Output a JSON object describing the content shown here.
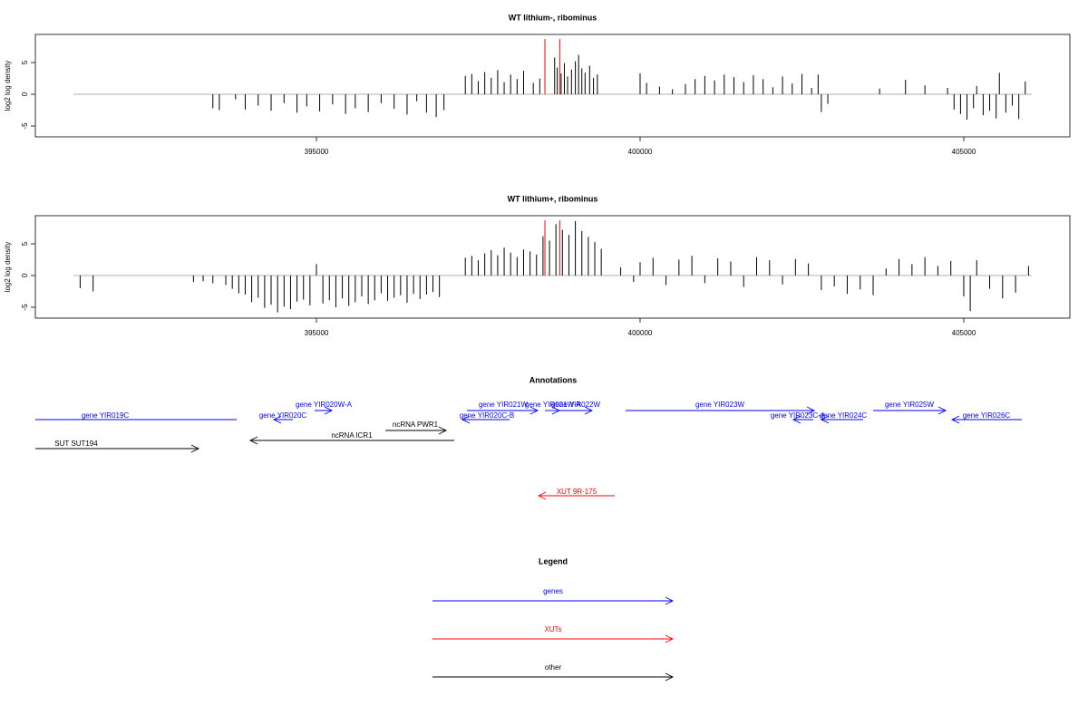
{
  "chart_data": [
    {
      "type": "bar",
      "title": "WT lithium-, ribominus",
      "ylabel": "log2 log density",
      "xlim": [
        390658,
        406639
      ],
      "ylim": [
        -6.71,
        9.43
      ],
      "xticks": [
        395000,
        400000,
        405000
      ],
      "yticks": [
        -5,
        0,
        5
      ],
      "series": [
        {
          "color": "#000000",
          "x": [
            393400,
            393500,
            393750,
            393900,
            394100,
            394300,
            394500,
            394700,
            394850,
            395050,
            395250,
            395450,
            395600,
            395800,
            396000,
            396200,
            396400,
            396550,
            396700,
            396850,
            396970,
            397300,
            397400,
            397500,
            397600,
            397700,
            397800,
            397900,
            398000,
            398100,
            398200,
            398350,
            398450,
            398680,
            398720,
            398780,
            398830,
            398880,
            398940,
            399000,
            399050,
            399100,
            399150,
            399220,
            399280,
            399340,
            400000,
            400100,
            400300,
            400500,
            400700,
            400850,
            401000,
            401150,
            401300,
            401450,
            401600,
            401750,
            401900,
            402050,
            402200,
            402350,
            402500,
            402650,
            402750,
            402800,
            402900,
            403700,
            404100,
            404400,
            404750,
            404850,
            404950,
            405050,
            405150,
            405200,
            405300,
            405400,
            405500,
            405550,
            405650,
            405750,
            405850,
            405950
          ],
          "values": [
            -2.2,
            -2.5,
            -0.8,
            -2.4,
            -1.8,
            -2.6,
            -1.4,
            -2.9,
            -1.9,
            -2.7,
            -1.6,
            -3.1,
            -2.2,
            -2.8,
            -1.4,
            -2.3,
            -3.2,
            -1.1,
            -2.9,
            -3.6,
            -2.5,
            2.9,
            3.2,
            2.1,
            3.5,
            2.6,
            3.8,
            1.9,
            3.1,
            2.4,
            3.7,
            1.8,
            2.5,
            5.8,
            4.2,
            3.3,
            4.9,
            2.8,
            3.9,
            5.2,
            6.2,
            4.1,
            3.4,
            4.5,
            2.6,
            3.1,
            3.3,
            1.8,
            1.2,
            0.8,
            1.6,
            2.4,
            2.9,
            2.2,
            3.1,
            2.7,
            1.9,
            3.0,
            2.4,
            1.1,
            2.8,
            1.7,
            3.2,
            1.0,
            3.1,
            -2.8,
            -1.5,
            0.9,
            2.3,
            1.4,
            1.0,
            -2.4,
            -3.1,
            -4.0,
            -2.2,
            1.3,
            -3.3,
            -2.6,
            -3.8,
            3.4,
            -2.9,
            -1.8,
            -3.9,
            2.0
          ]
        },
        {
          "color": "#e8322d",
          "x": [
            398530,
            398760
          ],
          "values": [
            8.7,
            8.7
          ]
        }
      ]
    },
    {
      "type": "bar",
      "title": "WT lithium+, ribominus",
      "ylabel": "log2 log density",
      "xlim": [
        390658,
        406639
      ],
      "ylim": [
        -6.71,
        9.43
      ],
      "xticks": [
        395000,
        400000,
        405000
      ],
      "yticks": [
        -5,
        0,
        5
      ],
      "series": [
        {
          "color": "#000000",
          "x": [
            391350,
            391550,
            393100,
            393250,
            393400,
            393600,
            393700,
            393800,
            393900,
            394000,
            394100,
            394200,
            394300,
            394400,
            394500,
            394600,
            394700,
            394800,
            394900,
            395000,
            395100,
            395200,
            395300,
            395400,
            395500,
            395600,
            395700,
            395800,
            395900,
            396000,
            396100,
            396200,
            396300,
            396400,
            396500,
            396600,
            396700,
            396800,
            396900,
            397300,
            397400,
            397500,
            397600,
            397700,
            397800,
            397900,
            398000,
            398100,
            398200,
            398300,
            398400,
            398500,
            398600,
            398700,
            398800,
            398900,
            399000,
            399100,
            399200,
            399300,
            399400,
            399700,
            399900,
            400000,
            400200,
            400400,
            400600,
            400800,
            401000,
            401200,
            401400,
            401600,
            401800,
            402000,
            402200,
            402400,
            402600,
            402800,
            403000,
            403200,
            403400,
            403600,
            403800,
            404000,
            404200,
            404400,
            404600,
            404800,
            405000,
            405100,
            405200,
            405400,
            405600,
            405800,
            406000
          ],
          "values": [
            -2.0,
            -2.5,
            -1.0,
            -0.9,
            -1.2,
            -1.5,
            -2.1,
            -2.8,
            -3.0,
            -4.2,
            -3.5,
            -5.1,
            -4.6,
            -5.8,
            -4.9,
            -5.3,
            -4.1,
            -3.8,
            -4.7,
            1.8,
            -4.4,
            -3.9,
            -5.0,
            -3.6,
            -4.8,
            -4.2,
            -3.3,
            -4.5,
            -3.9,
            -2.8,
            -4.0,
            -3.5,
            -3.1,
            -4.3,
            -2.9,
            -3.7,
            -3.0,
            -2.6,
            -3.4,
            2.8,
            3.1,
            2.4,
            3.5,
            4.0,
            3.2,
            4.4,
            3.6,
            2.9,
            4.1,
            3.8,
            3.3,
            6.2,
            5.5,
            8.1,
            7.2,
            6.4,
            8.6,
            7.0,
            6.1,
            5.3,
            4.2,
            1.3,
            -1.0,
            2.1,
            2.8,
            -1.5,
            2.5,
            3.1,
            -1.2,
            2.7,
            2.2,
            -1.8,
            2.9,
            2.4,
            -1.4,
            2.6,
            1.9,
            -2.3,
            -1.7,
            -2.9,
            -2.2,
            -3.1,
            1.1,
            2.6,
            1.8,
            2.9,
            1.5,
            2.3,
            -3.3,
            -5.6,
            2.4,
            -2.1,
            -3.6,
            -2.7,
            1.5
          ]
        },
        {
          "color": "#e8322d",
          "x": [
            398530,
            398760
          ],
          "values": [
            8.7,
            8.7
          ]
        }
      ]
    }
  ],
  "annotations": {
    "title": "Annotations",
    "features": [
      {
        "label": "gene YIR019C",
        "color": "#0000ff"
      },
      {
        "label": "gene YIR020W-A",
        "color": "#0000ff"
      },
      {
        "label": "gene YIR020C",
        "color": "#0000ff"
      },
      {
        "label": "ncRNA PWR1",
        "color": "#000000"
      },
      {
        "label": "ncRNA ICR1",
        "color": "#000000"
      },
      {
        "label": "SUT SUT194",
        "color": "#000000"
      },
      {
        "label": "gene YIR020C-B",
        "color": "#0000ff"
      },
      {
        "label": "gene YIR021W",
        "color": "#0000ff"
      },
      {
        "label": "gene YIR021W-A",
        "color": "#0000ff"
      },
      {
        "label": "gene YIR022W",
        "color": "#0000ff"
      },
      {
        "label": "gene YIR023W",
        "color": "#0000ff"
      },
      {
        "label": "gene YIR023C-A",
        "color": "#0000ff"
      },
      {
        "label": "gene YIR024C",
        "color": "#0000ff"
      },
      {
        "label": "gene YIR025W",
        "color": "#0000ff"
      },
      {
        "label": "gene YIR026C",
        "color": "#0000ff"
      },
      {
        "label": "XUT 9R-175",
        "color": "#ff0000"
      }
    ]
  },
  "legend": {
    "title": "Legend",
    "items": [
      {
        "label": "genes",
        "color": "#0000ff"
      },
      {
        "label": "XUTs",
        "color": "#ff0000"
      },
      {
        "label": "other",
        "color": "#000000"
      }
    ]
  }
}
